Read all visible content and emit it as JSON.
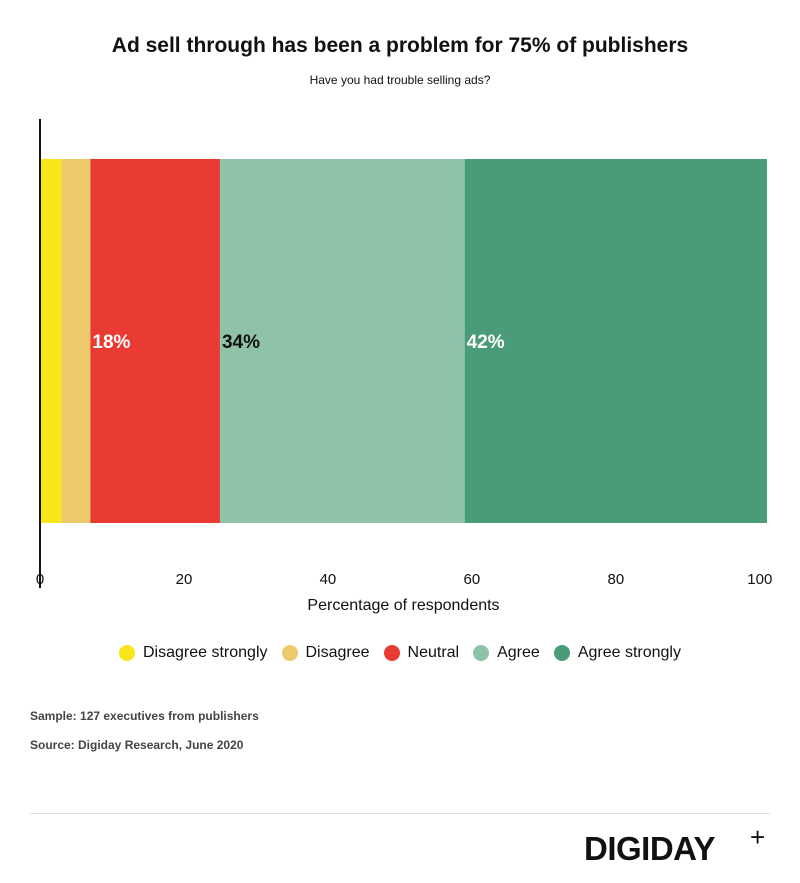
{
  "header": {
    "title": "Ad sell through has been a problem for 75% of publishers",
    "subtitle": "Have you had trouble selling ads?"
  },
  "chart_data": {
    "type": "bar",
    "orientation": "horizontal",
    "stacked": true,
    "categories": [
      ""
    ],
    "series": [
      {
        "name": "Disagree strongly",
        "values": [
          3
        ],
        "color": "#f6e61a",
        "label": ""
      },
      {
        "name": "Disagree",
        "values": [
          4
        ],
        "color": "#ecc96a",
        "label": ""
      },
      {
        "name": "Neutral",
        "values": [
          18
        ],
        "color": "#e93a33",
        "label": "18%",
        "label_color": "#ffffff"
      },
      {
        "name": "Agree",
        "values": [
          34
        ],
        "color": "#8fc3a7",
        "label": "34%",
        "label_color": "#111111"
      },
      {
        "name": "Agree strongly",
        "values": [
          42
        ],
        "color": "#4a9c78",
        "label": "42%",
        "label_color": "#ffffff"
      }
    ],
    "xlim": [
      0,
      101
    ],
    "xticks": [
      "0",
      "20",
      "40",
      "60",
      "80",
      "100"
    ],
    "xtick_values": [
      0,
      20,
      40,
      60,
      80,
      100
    ],
    "xlabel": "Percentage of respondents",
    "ylabel": "",
    "grid": false,
    "legend_position": "bottom"
  },
  "notes": {
    "sample": "Sample: 127 executives from publishers",
    "source": "Source: Digiday Research, June 2020"
  },
  "brand": {
    "name": "DIGIDAY",
    "plus": "+"
  }
}
